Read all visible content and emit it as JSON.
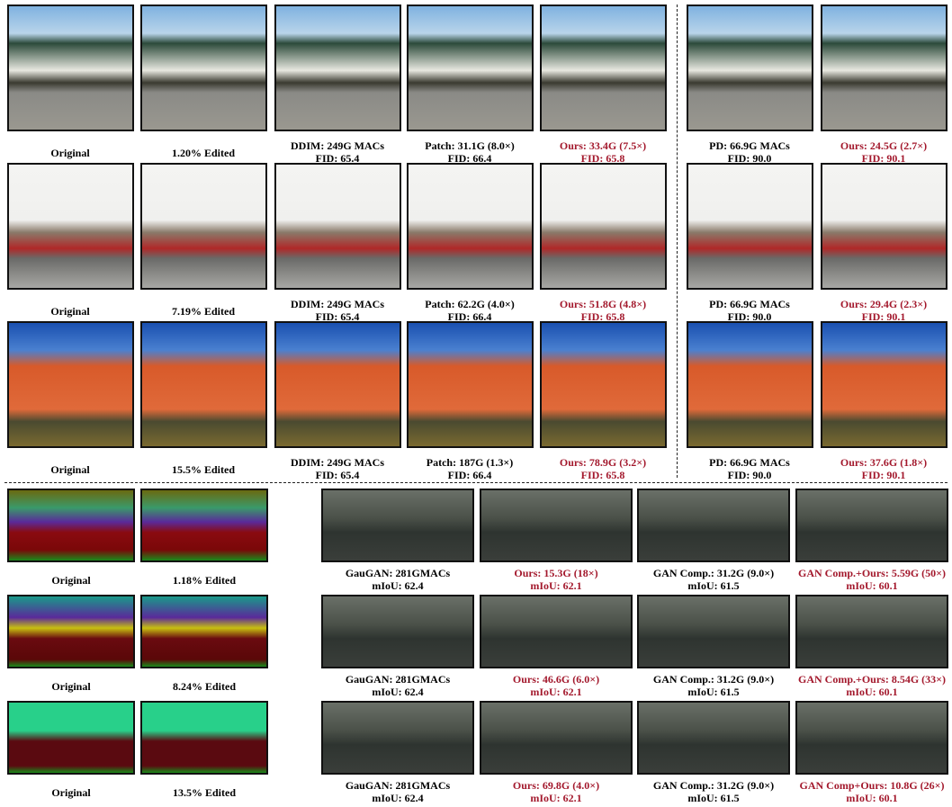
{
  "top": {
    "rows": [
      {
        "cells": [
          {
            "lines": [
              "Original"
            ]
          },
          {
            "lines": [
              "1.20% Edited"
            ]
          },
          {
            "lines": [
              "DDIM: 249G MACs",
              "FID: 65.4"
            ]
          },
          {
            "lines": [
              "Patch: 31.1G (8.0×)",
              "FID: 66.4"
            ]
          },
          {
            "lines": [
              "Ours: 33.4G (7.5×)",
              "FID: 65.8"
            ],
            "color": "#a3182c"
          },
          {
            "lines": [
              "PD: 66.9G MACs",
              "FID: 90.0"
            ]
          },
          {
            "lines": [
              "Ours: 24.5G (2.7×)",
              "FID: 90.1"
            ],
            "color": "#a3182c"
          }
        ]
      },
      {
        "cells": [
          {
            "lines": [
              "Original"
            ]
          },
          {
            "lines": [
              "7.19% Edited"
            ]
          },
          {
            "lines": [
              "DDIM: 249G MACs",
              "FID: 65.4"
            ]
          },
          {
            "lines": [
              "Patch: 62.2G (4.0×)",
              "FID: 66.4"
            ]
          },
          {
            "lines": [
              "Ours: 51.8G (4.8×)",
              "FID: 65.8"
            ],
            "color": "#a3182c"
          },
          {
            "lines": [
              "PD: 66.9G MACs",
              "FID: 90.0"
            ]
          },
          {
            "lines": [
              "Ours: 29.4G (2.3×)",
              "FID: 90.1"
            ],
            "color": "#a3182c"
          }
        ]
      },
      {
        "cells": [
          {
            "lines": [
              "Original"
            ]
          },
          {
            "lines": [
              "15.5% Edited"
            ]
          },
          {
            "lines": [
              "DDIM: 249G MACs",
              "FID: 65.4"
            ]
          },
          {
            "lines": [
              "Patch: 187G (1.3×)",
              "FID: 66.4"
            ]
          },
          {
            "lines": [
              "Ours: 78.9G (3.2×)",
              "FID: 65.8"
            ],
            "color": "#a3182c"
          },
          {
            "lines": [
              "PD: 66.9G MACs",
              "FID: 90.0"
            ]
          },
          {
            "lines": [
              "Ours: 37.6G (1.8×)",
              "FID: 90.1"
            ],
            "color": "#a3182c"
          }
        ]
      }
    ]
  },
  "bottom": {
    "rows": [
      {
        "cells": [
          {
            "lines": [
              "Original"
            ]
          },
          {
            "lines": [
              "1.18% Edited"
            ]
          },
          {
            "lines": [
              "GauGAN: 281GMACs",
              "mIoU: 62.4"
            ]
          },
          {
            "lines": [
              "Ours: 15.3G (18×)",
              "mIoU: 62.1"
            ],
            "color": "#a3182c"
          },
          {
            "lines": [
              "GAN Comp.: 31.2G (9.0×)",
              "mIoU: 61.5"
            ]
          },
          {
            "lines": [
              "GAN Comp.+Ours: 5.59G (50×)",
              "mIoU: 60.1"
            ],
            "color": "#a3182c"
          }
        ]
      },
      {
        "cells": [
          {
            "lines": [
              "Original"
            ]
          },
          {
            "lines": [
              "8.24% Edited"
            ]
          },
          {
            "lines": [
              "GauGAN: 281GMACs",
              "mIoU: 62.4"
            ]
          },
          {
            "lines": [
              "Ours: 46.6G (6.0×)",
              "mIoU: 62.1"
            ],
            "color": "#a3182c"
          },
          {
            "lines": [
              "GAN Comp.: 31.2G (9.0×)",
              "mIoU: 61.5"
            ]
          },
          {
            "lines": [
              "GAN Comp.+Ours: 8.54G (33×)",
              "mIoU: 60.1"
            ],
            "color": "#a3182c"
          }
        ]
      },
      {
        "cells": [
          {
            "lines": [
              "Original"
            ]
          },
          {
            "lines": [
              "13.5% Edited"
            ]
          },
          {
            "lines": [
              "GauGAN: 281GMACs",
              "mIoU: 62.4"
            ]
          },
          {
            "lines": [
              "Ours: 69.8G (4.0×)",
              "mIoU: 62.1"
            ],
            "color": "#a3182c"
          },
          {
            "lines": [
              "GAN Comp.: 31.2G (9.0×)",
              "mIoU: 61.5"
            ]
          },
          {
            "lines": [
              "GAN Comp+Ours: 10.8G (26×)",
              "mIoU: 60.1"
            ],
            "color": "#a3182c"
          }
        ]
      }
    ]
  }
}
